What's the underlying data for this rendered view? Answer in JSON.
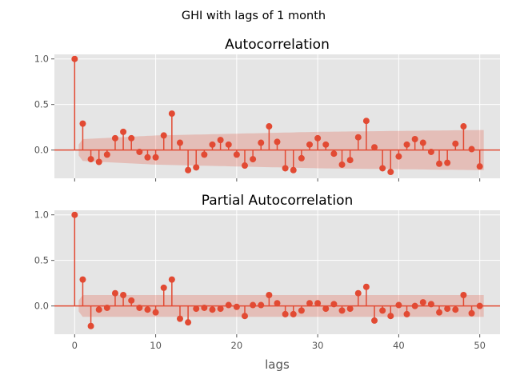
{
  "figure": {
    "suptitle": "GHI with lags of 1 month"
  },
  "colors": {
    "axes_bg": "#e5e5e5",
    "grid": "#ffffff",
    "stem": "#e24a33",
    "zero_line": "#e24a33",
    "confidence_band": "#e24a33",
    "tick_text": "#555555",
    "label_text": "#555555",
    "title_text": "#000000"
  },
  "chart_data": [
    {
      "type": "stem",
      "title": "Autocorrelation",
      "xlabel": "",
      "ylabel": "",
      "xlim": [
        -2.5,
        52.5
      ],
      "ylim": [
        -0.31,
        1.05
      ],
      "xticks": [
        0,
        10,
        20,
        30,
        40,
        50
      ],
      "yticks": [
        -0.0,
        0.5,
        1.0
      ],
      "ytick_labels": [
        "0.0",
        "0.5",
        "1.0"
      ],
      "show_xtick_labels": false,
      "grid": true,
      "lags": [
        0,
        1,
        2,
        3,
        4,
        5,
        6,
        7,
        8,
        9,
        10,
        11,
        12,
        13,
        14,
        15,
        16,
        17,
        18,
        19,
        20,
        21,
        22,
        23,
        24,
        25,
        26,
        27,
        28,
        29,
        30,
        31,
        32,
        33,
        34,
        35,
        36,
        37,
        38,
        39,
        40,
        41,
        42,
        43,
        44,
        45,
        46,
        47,
        48,
        49,
        50
      ],
      "values": [
        1.0,
        0.29,
        -0.1,
        -0.13,
        -0.05,
        0.13,
        0.2,
        0.13,
        -0.02,
        -0.08,
        -0.08,
        0.16,
        0.4,
        0.08,
        -0.22,
        -0.19,
        -0.05,
        0.06,
        0.11,
        0.06,
        -0.05,
        -0.17,
        -0.1,
        0.08,
        0.26,
        0.09,
        -0.2,
        -0.22,
        -0.09,
        0.06,
        0.13,
        0.06,
        -0.04,
        -0.16,
        -0.11,
        0.14,
        0.32,
        0.03,
        -0.2,
        -0.24,
        -0.07,
        0.06,
        0.12,
        0.08,
        -0.02,
        -0.15,
        -0.14,
        0.07,
        0.26,
        0.01,
        -0.18
      ],
      "confidence_band": {
        "lags": [
          0,
          1,
          10,
          20,
          30,
          40,
          50
        ],
        "upper": [
          0.0,
          0.12,
          0.16,
          0.18,
          0.2,
          0.21,
          0.22
        ],
        "lower": [
          0.0,
          -0.12,
          -0.16,
          -0.18,
          -0.2,
          -0.21,
          -0.22
        ]
      }
    },
    {
      "type": "stem",
      "title": "Partial Autocorrelation",
      "xlabel": "lags",
      "ylabel": "",
      "xlim": [
        -2.5,
        52.5
      ],
      "ylim": [
        -0.31,
        1.05
      ],
      "xticks": [
        0,
        10,
        20,
        30,
        40,
        50
      ],
      "xtick_labels": [
        "0",
        "10",
        "20",
        "30",
        "40",
        "50"
      ],
      "yticks": [
        -0.0,
        0.5,
        1.0
      ],
      "ytick_labels": [
        "0.0",
        "0.5",
        "1.0"
      ],
      "show_xtick_labels": true,
      "grid": true,
      "lags": [
        0,
        1,
        2,
        3,
        4,
        5,
        6,
        7,
        8,
        9,
        10,
        11,
        12,
        13,
        14,
        15,
        16,
        17,
        18,
        19,
        20,
        21,
        22,
        23,
        24,
        25,
        26,
        27,
        28,
        29,
        30,
        31,
        32,
        33,
        34,
        35,
        36,
        37,
        38,
        39,
        40,
        41,
        42,
        43,
        44,
        45,
        46,
        47,
        48,
        49,
        50
      ],
      "values": [
        1.0,
        0.29,
        -0.22,
        -0.04,
        -0.02,
        0.14,
        0.12,
        0.06,
        -0.02,
        -0.04,
        -0.07,
        0.2,
        0.29,
        -0.14,
        -0.18,
        -0.03,
        -0.02,
        -0.04,
        -0.03,
        0.01,
        -0.01,
        -0.11,
        0.01,
        0.01,
        0.12,
        0.03,
        -0.09,
        -0.09,
        -0.05,
        0.03,
        0.03,
        -0.03,
        0.02,
        -0.05,
        -0.03,
        0.14,
        0.21,
        -0.16,
        -0.05,
        -0.11,
        0.01,
        -0.09,
        0.0,
        0.04,
        0.02,
        -0.07,
        -0.03,
        -0.04,
        0.12,
        -0.08,
        0.0
      ],
      "confidence_band": {
        "lags": [
          0,
          1,
          50
        ],
        "upper": [
          0.0,
          0.12,
          0.12
        ],
        "lower": [
          0.0,
          -0.12,
          -0.12
        ]
      }
    }
  ]
}
